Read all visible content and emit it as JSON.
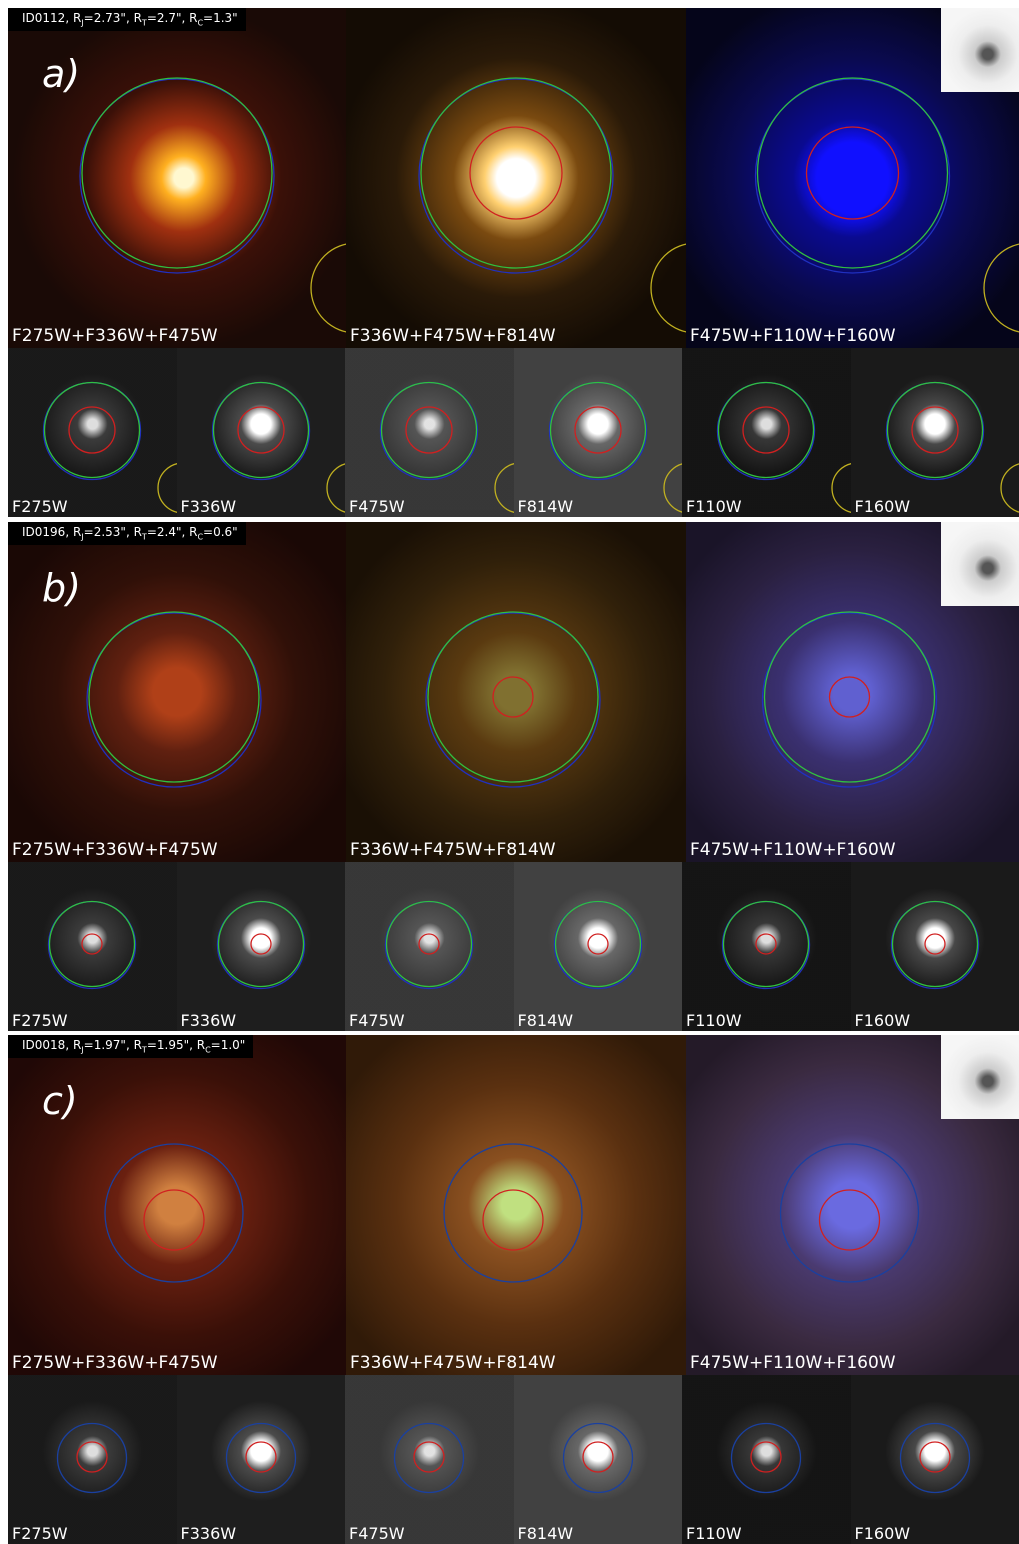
{
  "rows": [
    {
      "caption": [
        "ID0112, R",
        "J",
        "=2.73\", R",
        "T",
        "=2.7\", R",
        "C",
        "=1.3\""
      ],
      "letter": "a)",
      "composites": [
        "F275W+F336W+F475W",
        "F336W+F475W+F814W",
        "F475W+F110W+F160W"
      ],
      "singles": [
        "F275W",
        "F336W",
        "F475W",
        "F814W",
        "F110W",
        "F160W"
      ]
    },
    {
      "caption": [
        "ID0196, R",
        "J",
        "=2.53\", R",
        "T",
        "=2.4\", R",
        "C",
        "=0.6\""
      ],
      "letter": "b)",
      "composites": [
        "F275W+F336W+F475W",
        "F336W+F475W+F814W",
        "F475W+F110W+F160W"
      ],
      "singles": [
        "F275W",
        "F336W",
        "F475W",
        "F814W",
        "F110W",
        "F160W"
      ]
    },
    {
      "caption": [
        "ID0018, R",
        "J",
        "=1.97\", R",
        "T",
        "=1.95\", R",
        "C",
        "=1.0\""
      ],
      "letter": "c)",
      "composites": [
        "F275W+F336W+F475W",
        "F336W+F475W+F814W",
        "F475W+F110W+F160W"
      ],
      "singles": [
        "F275W",
        "F336W",
        "F475W",
        "F814W",
        "F110W",
        "F160W"
      ]
    }
  ]
}
